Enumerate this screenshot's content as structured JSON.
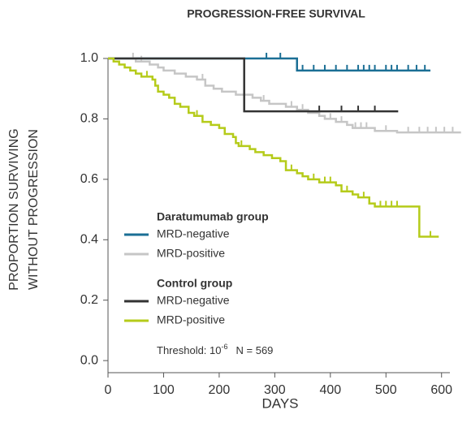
{
  "chart_data": {
    "type": "step",
    "title": "PROGRESSION-FREE SURVIVAL",
    "xlabel": "DAYS",
    "ylabel": [
      "PROPORTION SURVIVING",
      "WITHOUT PROGRESSION"
    ],
    "xlim": [
      0,
      615
    ],
    "ylim": [
      -0.04,
      1
    ],
    "xticks": [
      0,
      100,
      200,
      300,
      400,
      500,
      600
    ],
    "yticks": [
      {
        "value": 0,
        "label": "0.0"
      },
      0.2,
      0.4,
      0.6,
      0.8,
      {
        "value": 1,
        "label": "1.0"
      }
    ],
    "groups": [
      {
        "name": "Daratumumab group",
        "series": [
          {
            "name": "MRD-negative",
            "color": "#1b6f95",
            "x": [
              0,
              340,
              580
            ],
            "values": [
              1,
              0.96,
              0.96
            ],
            "censored": {
              "x": [
                285,
                310,
                350,
                370,
                390,
                410,
                430,
                450,
                460,
                470,
                480,
                500,
                510,
                520,
                540,
                555,
                570
              ],
              "y": [
                1,
                1,
                0.96,
                0.96,
                0.96,
                0.96,
                0.96,
                0.96,
                0.96,
                0.96,
                0.96,
                0.96,
                0.96,
                0.96,
                0.96,
                0.96,
                0.96
              ]
            }
          },
          {
            "name": "MRD-positive",
            "color": "#c6c6c6",
            "x": [
              0,
              50,
              75,
              90,
              100,
              120,
              140,
              160,
              175,
              190,
              205,
              230,
              260,
              275,
              290,
              320,
              340,
              360,
              380,
              390,
              410,
              430,
              440,
              480,
              520,
              635
            ],
            "values": [
              1,
              0.99,
              0.98,
              0.97,
              0.96,
              0.95,
              0.94,
              0.93,
              0.91,
              0.9,
              0.89,
              0.88,
              0.87,
              0.86,
              0.85,
              0.84,
              0.83,
              0.82,
              0.81,
              0.8,
              0.79,
              0.78,
              0.77,
              0.76,
              0.755,
              0.755
            ],
            "censored": {
              "x": [
                45,
                60,
                170,
                280,
                330,
                350,
                400,
                420,
                445,
                455,
                465,
                500,
                540,
                560,
                575,
                590,
                605,
                620
              ],
              "y": [
                1,
                0.99,
                0.93,
                0.86,
                0.84,
                0.83,
                0.8,
                0.79,
                0.77,
                0.77,
                0.77,
                0.76,
                0.755,
                0.755,
                0.755,
                0.755,
                0.755,
                0.755
              ]
            }
          }
        ]
      },
      {
        "name": "Control group",
        "series": [
          {
            "name": "MRD-negative",
            "color": "#333333",
            "x": [
              0,
              245,
              522
            ],
            "values": [
              1,
              0.825,
              0.825
            ],
            "censored": {
              "x": [
                380,
                420,
                450,
                480
              ],
              "y": [
                0.825,
                0.825,
                0.825,
                0.825
              ]
            }
          },
          {
            "name": "MRD-positive",
            "color": "#b5cb1a",
            "x": [
              0,
              10,
              20,
              30,
              40,
              50,
              60,
              80,
              85,
              90,
              100,
              110,
              120,
              130,
              145,
              155,
              170,
              185,
              200,
              210,
              225,
              230,
              235,
              255,
              265,
              280,
              295,
              310,
              320,
              340,
              350,
              360,
              380,
              410,
              420,
              440,
              450,
              470,
              480,
              560,
              595
            ],
            "values": [
              1,
              0.99,
              0.98,
              0.97,
              0.96,
              0.95,
              0.94,
              0.93,
              0.91,
              0.89,
              0.88,
              0.87,
              0.85,
              0.84,
              0.82,
              0.81,
              0.79,
              0.78,
              0.77,
              0.75,
              0.74,
              0.72,
              0.71,
              0.7,
              0.69,
              0.68,
              0.67,
              0.66,
              0.63,
              0.62,
              0.61,
              0.6,
              0.59,
              0.58,
              0.56,
              0.55,
              0.54,
              0.52,
              0.51,
              0.41,
              0.41
            ],
            "censored": {
              "x": [
                70,
                160,
                240,
                330,
                370,
                390,
                400,
                430,
                460,
                490,
                500,
                510,
                520,
                580
              ],
              "y": [
                0.94,
                0.81,
                0.71,
                0.63,
                0.6,
                0.59,
                0.59,
                0.56,
                0.54,
                0.51,
                0.51,
                0.51,
                0.51,
                0.41
              ]
            }
          }
        ]
      }
    ],
    "annotation": {
      "text": "Threshold: 10",
      "superscript": "-6",
      "n": "N = 569"
    }
  }
}
